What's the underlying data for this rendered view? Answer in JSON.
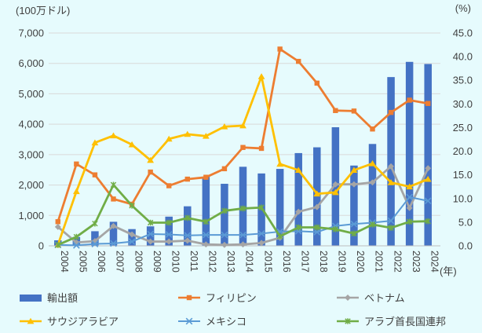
{
  "chart_data": {
    "type": "combo_bar_line",
    "title": "",
    "x": [
      2004,
      2005,
      2006,
      2007,
      2008,
      2009,
      2010,
      2011,
      2012,
      2013,
      2014,
      2015,
      2016,
      2017,
      2018,
      2019,
      2020,
      2021,
      2022,
      2023,
      2024
    ],
    "x_axis_label": "(年)",
    "left_axis": {
      "title": "(100万ドル)",
      "min": 0,
      "max": 7000,
      "step": 1000
    },
    "right_axis": {
      "title": "(%)",
      "min": 0,
      "max": 45,
      "step": 5
    },
    "grid": true,
    "legend_position": "bottom",
    "series": [
      {
        "name": "輸出額",
        "type": "bar",
        "axis": "left",
        "color": "#4472C4",
        "values": [
          180,
          290,
          480,
          790,
          550,
          640,
          960,
          1300,
          2270,
          2040,
          2600,
          2380,
          2530,
          3050,
          3240,
          3900,
          2640,
          3350,
          5550,
          6050,
          5980
        ]
      },
      {
        "name": "フィリピン",
        "type": "line",
        "axis": "right",
        "color": "#ED7D31",
        "marker": "square",
        "values": [
          5.1,
          17.3,
          15.0,
          9.9,
          8.8,
          15.6,
          12.7,
          14.1,
          14.5,
          16.3,
          20.8,
          20.6,
          41.6,
          39.0,
          34.4,
          28.6,
          28.5,
          24.7,
          28.2,
          30.8,
          30.1
        ]
      },
      {
        "name": "ベトナム",
        "type": "line",
        "axis": "right",
        "color": "#A5A5A5",
        "marker": "diamond",
        "values": [
          4.0,
          0.7,
          1.0,
          4.2,
          2.4,
          0.9,
          0.9,
          1.1,
          0.3,
          0.2,
          0.3,
          0.6,
          1.7,
          7.2,
          8.2,
          13.0,
          13.0,
          13.4,
          16.8,
          8.0,
          16.4
        ]
      },
      {
        "name": "サウジアラビア",
        "type": "line",
        "axis": "right",
        "color": "#FFC000",
        "marker": "triangle",
        "values": [
          0.2,
          11.5,
          21.8,
          23.3,
          21.4,
          18.1,
          22.6,
          23.6,
          23.2,
          25.2,
          25.4,
          35.8,
          17.3,
          16.0,
          11.0,
          11.3,
          16.0,
          17.4,
          13.4,
          12.5,
          14.1
        ]
      },
      {
        "name": "メキシコ",
        "type": "line",
        "axis": "right",
        "color": "#5B9BD5",
        "marker": "x",
        "values": [
          0.2,
          0.1,
          0.4,
          0.5,
          0.9,
          2.5,
          2.4,
          2.2,
          2.3,
          2.3,
          2.3,
          2.6,
          3.0,
          3.1,
          2.9,
          4.2,
          4.6,
          4.9,
          5.3,
          10.3,
          9.5
        ]
      },
      {
        "name": "アラブ首長国連邦",
        "type": "line",
        "axis": "right",
        "color": "#70AD47",
        "marker": "asterisk",
        "values": [
          0.2,
          1.9,
          4.7,
          12.9,
          8.5,
          4.9,
          4.9,
          5.9,
          5.1,
          7.4,
          7.9,
          8.1,
          2.0,
          3.9,
          3.9,
          3.5,
          2.6,
          4.5,
          3.8,
          5.1,
          5.2
        ]
      }
    ]
  },
  "colors": {
    "background": "#E6FBFD",
    "gridline": "#D9D9D9",
    "axis_line": "#BFBFBF",
    "text": "#3F3F3F"
  }
}
